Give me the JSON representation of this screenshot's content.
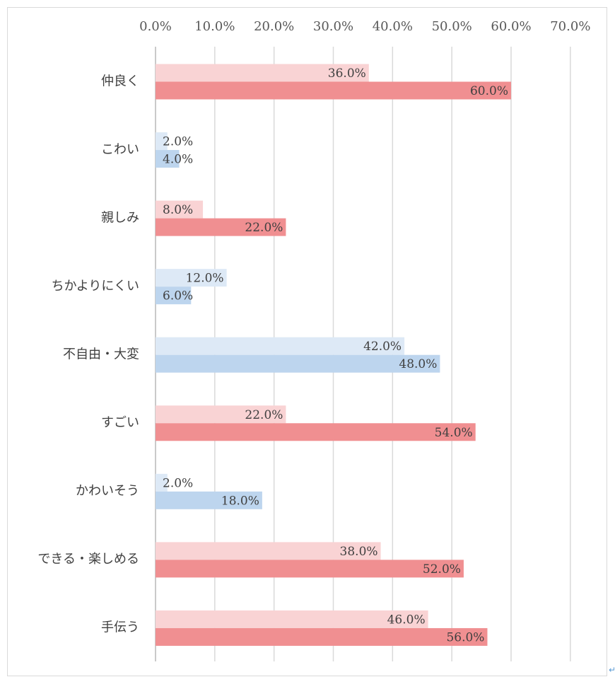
{
  "chart_data": {
    "type": "bar",
    "orientation": "horizontal",
    "xlim": [
      0,
      70
    ],
    "ticks": [
      "0.0%",
      "10.0%",
      "20.0%",
      "30.0%",
      "40.0%",
      "50.0%",
      "60.0%",
      "70.0%"
    ],
    "grid": true,
    "categories": [
      "仲良く",
      "こわい",
      "親しみ",
      "ちかよりにくい",
      "不自由・大変",
      "すごい",
      "かわいそう",
      "できる・楽しめる",
      "手伝う"
    ],
    "values_a": [
      36,
      2,
      8,
      12,
      42,
      22,
      2,
      38,
      46
    ],
    "values_b": [
      60,
      4,
      22,
      6,
      48,
      54,
      18,
      52,
      56
    ],
    "labels_a": [
      "36.0%",
      "2.0%",
      "8.0%",
      "12.0%",
      "42.0%",
      "22.0%",
      "2.0%",
      "38.0%",
      "46.0%"
    ],
    "labels_b": [
      "60.0%",
      "4.0%",
      "22.0%",
      "6.0%",
      "48.0%",
      "54.0%",
      "18.0%",
      "52.0%",
      "56.0%"
    ],
    "group_tone": [
      "red",
      "blue",
      "red",
      "blue",
      "blue",
      "red",
      "blue",
      "red",
      "red"
    ],
    "colors": {
      "red_light": "#f9d3d4",
      "red_dark": "#f08f91",
      "blue_light": "#dde9f6",
      "blue_dark": "#bdd5ee",
      "grid": "#d9d9d9"
    }
  },
  "corner_mark": "↵"
}
